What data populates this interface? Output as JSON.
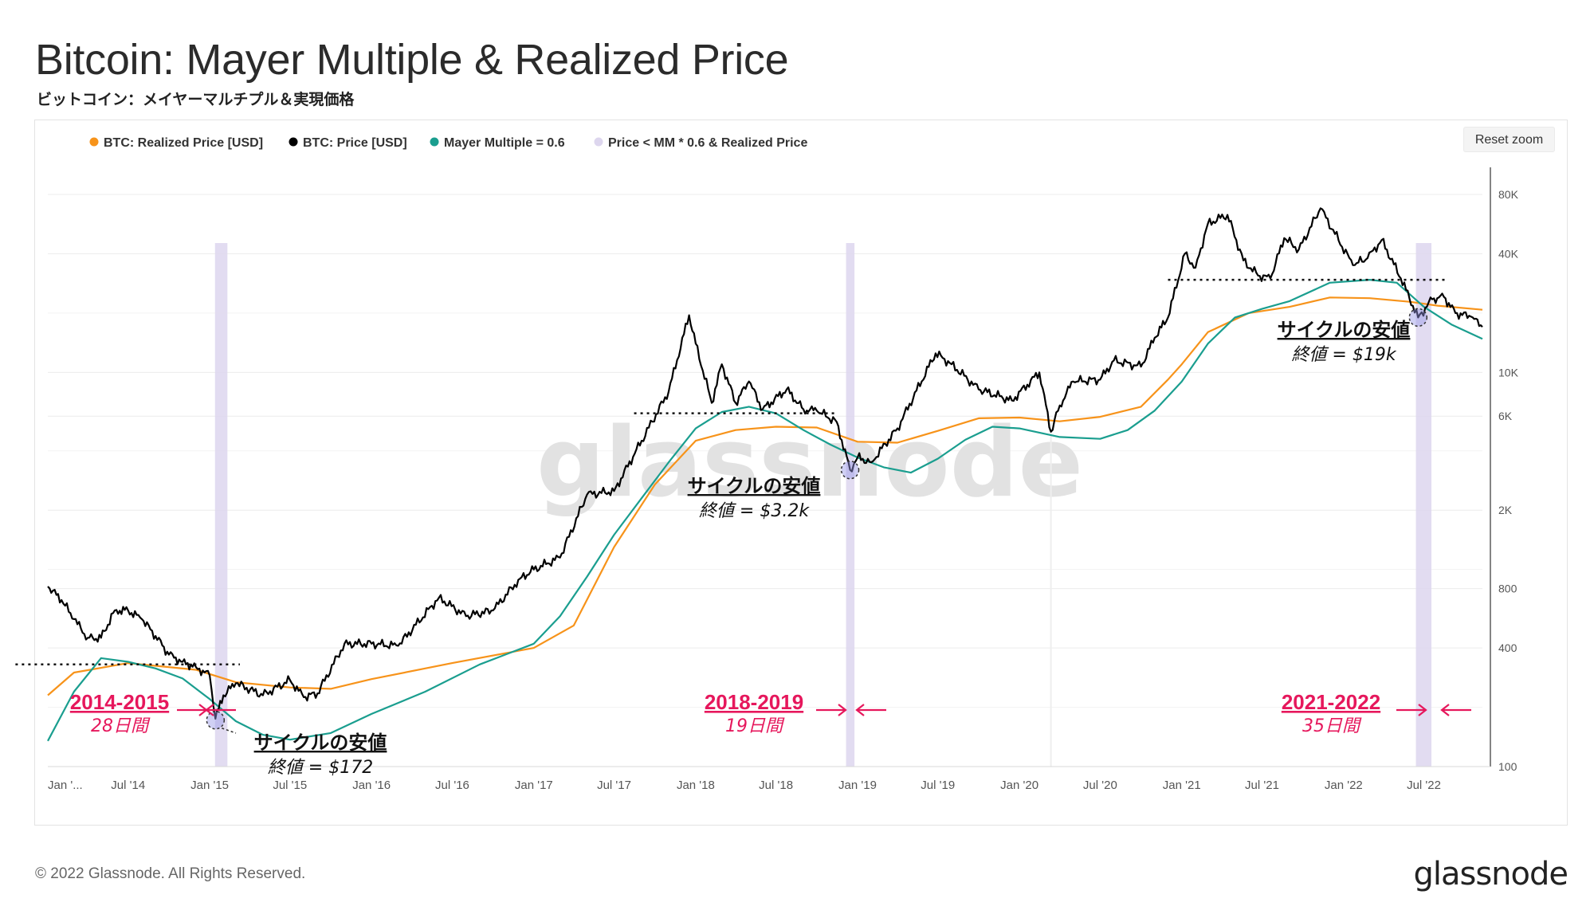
{
  "header": {
    "title": "Bitcoin: Mayer Multiple & Realized Price",
    "subtitle": "ビットコイン：メイヤーマルチプル＆実現価格"
  },
  "toolbar": {
    "reset_zoom_label": "Reset zoom"
  },
  "footer": {
    "copyright": "© 2022 Glassnode. All Rights Reserved.",
    "logo": "glassnode"
  },
  "watermark": "glassnode",
  "colors": {
    "realized": "#f7931a",
    "price": "#000000",
    "mayer": "#1a9e8f",
    "band": "#ddd6ee",
    "annotation": "#e6175c"
  },
  "chart_data": {
    "type": "line",
    "y_scale": "log",
    "ylim": [
      100,
      100000
    ],
    "y_ticks": [
      {
        "label": "100",
        "value": 100
      },
      {
        "label": "400",
        "value": 400
      },
      {
        "label": "800",
        "value": 800
      },
      {
        "label": "2K",
        "value": 2000
      },
      {
        "label": "6K",
        "value": 6000
      },
      {
        "label": "10K",
        "value": 10000
      },
      {
        "label": "40K",
        "value": 40000
      },
      {
        "label": "80K",
        "value": 80000
      }
    ],
    "x_range": [
      "2014-01-01",
      "2022-11-10"
    ],
    "x_ticks": [
      {
        "label": "Jan '...",
        "date": "2014-01-01"
      },
      {
        "label": "Jul '14",
        "date": "2014-07-01"
      },
      {
        "label": "Jan '15",
        "date": "2015-01-01"
      },
      {
        "label": "Jul '15",
        "date": "2015-07-01"
      },
      {
        "label": "Jan '16",
        "date": "2016-01-01"
      },
      {
        "label": "Jul '16",
        "date": "2016-07-01"
      },
      {
        "label": "Jan '17",
        "date": "2017-01-01"
      },
      {
        "label": "Jul '17",
        "date": "2017-07-01"
      },
      {
        "label": "Jan '18",
        "date": "2018-01-01"
      },
      {
        "label": "Jul '18",
        "date": "2018-07-01"
      },
      {
        "label": "Jan '19",
        "date": "2019-01-01"
      },
      {
        "label": "Jul '19",
        "date": "2019-07-01"
      },
      {
        "label": "Jan '20",
        "date": "2020-01-01"
      },
      {
        "label": "Jul '20",
        "date": "2020-07-01"
      },
      {
        "label": "Jan '21",
        "date": "2021-01-01"
      },
      {
        "label": "Jul '21",
        "date": "2021-07-01"
      },
      {
        "label": "Jan '22",
        "date": "2022-01-01"
      },
      {
        "label": "Jul '22",
        "date": "2022-07-01"
      }
    ],
    "legend_position": "top-left",
    "series": [
      {
        "name": "BTC: Realized Price [USD]",
        "key": "realized",
        "points": [
          [
            "2014-01-01",
            230
          ],
          [
            "2014-03-01",
            300
          ],
          [
            "2014-07-01",
            335
          ],
          [
            "2014-12-01",
            310
          ],
          [
            "2015-03-01",
            268
          ],
          [
            "2015-07-01",
            252
          ],
          [
            "2015-10-01",
            248
          ],
          [
            "2016-01-01",
            278
          ],
          [
            "2016-07-01",
            335
          ],
          [
            "2017-01-01",
            400
          ],
          [
            "2017-04-01",
            520
          ],
          [
            "2017-07-01",
            1300
          ],
          [
            "2017-10-01",
            2700
          ],
          [
            "2018-01-01",
            4500
          ],
          [
            "2018-04-01",
            5100
          ],
          [
            "2018-07-01",
            5300
          ],
          [
            "2018-10-01",
            5250
          ],
          [
            "2019-01-01",
            4450
          ],
          [
            "2019-04-01",
            4400
          ],
          [
            "2019-07-01",
            5050
          ],
          [
            "2019-10-01",
            5850
          ],
          [
            "2020-01-01",
            5900
          ],
          [
            "2020-04-01",
            5650
          ],
          [
            "2020-07-01",
            5950
          ],
          [
            "2020-10-01",
            6700
          ],
          [
            "2020-12-01",
            9200
          ],
          [
            "2021-01-01",
            11000
          ],
          [
            "2021-03-01",
            16000
          ],
          [
            "2021-06-01",
            20000
          ],
          [
            "2021-09-01",
            21500
          ],
          [
            "2021-12-01",
            24000
          ],
          [
            "2022-03-01",
            23800
          ],
          [
            "2022-06-01",
            22800
          ],
          [
            "2022-08-01",
            21800
          ],
          [
            "2022-11-10",
            20800
          ]
        ]
      },
      {
        "name": "BTC: Price [USD]",
        "key": "price",
        "points": [
          [
            "2014-01-01",
            820
          ],
          [
            "2014-02-01",
            700
          ],
          [
            "2014-03-01",
            560
          ],
          [
            "2014-04-01",
            450
          ],
          [
            "2014-05-01",
            450
          ],
          [
            "2014-06-01",
            620
          ],
          [
            "2014-07-01",
            620
          ],
          [
            "2014-08-01",
            560
          ],
          [
            "2014-09-01",
            460
          ],
          [
            "2014-10-01",
            370
          ],
          [
            "2014-11-01",
            340
          ],
          [
            "2014-12-01",
            320
          ],
          [
            "2015-01-01",
            290
          ],
          [
            "2015-01-14",
            175
          ],
          [
            "2015-02-01",
            230
          ],
          [
            "2015-03-01",
            265
          ],
          [
            "2015-05-01",
            230
          ],
          [
            "2015-07-01",
            275
          ],
          [
            "2015-08-01",
            225
          ],
          [
            "2015-09-01",
            235
          ],
          [
            "2015-11-01",
            420
          ],
          [
            "2016-01-01",
            420
          ],
          [
            "2016-03-01",
            410
          ],
          [
            "2016-06-01",
            720
          ],
          [
            "2016-08-01",
            580
          ],
          [
            "2016-10-01",
            620
          ],
          [
            "2016-12-01",
            900
          ],
          [
            "2017-01-01",
            1000
          ],
          [
            "2017-03-01",
            1150
          ],
          [
            "2017-05-01",
            2400
          ],
          [
            "2017-07-01",
            2500
          ],
          [
            "2017-09-01",
            4500
          ],
          [
            "2017-11-01",
            8000
          ],
          [
            "2017-12-17",
            19500
          ],
          [
            "2018-01-01",
            14000
          ],
          [
            "2018-02-06",
            7000
          ],
          [
            "2018-03-01",
            11000
          ],
          [
            "2018-04-01",
            7000
          ],
          [
            "2018-05-01",
            9000
          ],
          [
            "2018-06-01",
            6500
          ],
          [
            "2018-07-25",
            8200
          ],
          [
            "2018-09-01",
            6500
          ],
          [
            "2018-10-01",
            6400
          ],
          [
            "2018-11-15",
            5600
          ],
          [
            "2018-12-15",
            3200
          ],
          [
            "2019-01-01",
            3700
          ],
          [
            "2019-02-01",
            3500
          ],
          [
            "2019-04-01",
            5200
          ],
          [
            "2019-06-26",
            12500
          ],
          [
            "2019-08-01",
            11000
          ],
          [
            "2019-10-01",
            8200
          ],
          [
            "2019-12-15",
            7200
          ],
          [
            "2020-02-15",
            10000
          ],
          [
            "2020-03-12",
            5000
          ],
          [
            "2020-04-01",
            6800
          ],
          [
            "2020-05-01",
            9000
          ],
          [
            "2020-07-01",
            9200
          ],
          [
            "2020-08-01",
            11500
          ],
          [
            "2020-10-01",
            10700
          ],
          [
            "2020-11-01",
            15000
          ],
          [
            "2020-12-01",
            19000
          ],
          [
            "2021-01-08",
            40000
          ],
          [
            "2021-02-01",
            34000
          ],
          [
            "2021-03-01",
            57000
          ],
          [
            "2021-04-14",
            63000
          ],
          [
            "2021-05-20",
            37000
          ],
          [
            "2021-06-22",
            31000
          ],
          [
            "2021-07-20",
            30000
          ],
          [
            "2021-08-20",
            48000
          ],
          [
            "2021-09-22",
            42000
          ],
          [
            "2021-11-10",
            68000
          ],
          [
            "2022-01-22",
            35000
          ],
          [
            "2022-02-24",
            38000
          ],
          [
            "2022-03-28",
            47000
          ],
          [
            "2022-05-10",
            30000
          ],
          [
            "2022-06-18",
            19000
          ],
          [
            "2022-07-20",
            23500
          ],
          [
            "2022-08-15",
            24200
          ],
          [
            "2022-09-10",
            20000
          ],
          [
            "2022-10-15",
            19200
          ],
          [
            "2022-11-10",
            17000
          ]
        ]
      },
      {
        "name": "Mayer Multiple = 0.6",
        "key": "mayer",
        "points": [
          [
            "2014-01-01",
            135
          ],
          [
            "2014-03-01",
            240
          ],
          [
            "2014-05-01",
            355
          ],
          [
            "2014-07-01",
            340
          ],
          [
            "2014-09-01",
            315
          ],
          [
            "2014-11-01",
            280
          ],
          [
            "2015-01-01",
            220
          ],
          [
            "2015-03-01",
            170
          ],
          [
            "2015-05-01",
            145
          ],
          [
            "2015-07-01",
            137
          ],
          [
            "2015-10-01",
            148
          ],
          [
            "2016-01-01",
            185
          ],
          [
            "2016-05-01",
            240
          ],
          [
            "2016-09-01",
            330
          ],
          [
            "2017-01-01",
            420
          ],
          [
            "2017-03-01",
            580
          ],
          [
            "2017-05-01",
            920
          ],
          [
            "2017-07-01",
            1500
          ],
          [
            "2017-09-01",
            2300
          ],
          [
            "2017-11-01",
            3500
          ],
          [
            "2018-01-01",
            5200
          ],
          [
            "2018-03-01",
            6300
          ],
          [
            "2018-05-01",
            6700
          ],
          [
            "2018-07-01",
            6200
          ],
          [
            "2018-09-01",
            5100
          ],
          [
            "2018-11-01",
            4300
          ],
          [
            "2019-01-01",
            3700
          ],
          [
            "2019-03-01",
            3300
          ],
          [
            "2019-05-01",
            3100
          ],
          [
            "2019-07-01",
            3650
          ],
          [
            "2019-09-01",
            4550
          ],
          [
            "2019-11-01",
            5300
          ],
          [
            "2020-01-01",
            5200
          ],
          [
            "2020-04-01",
            4700
          ],
          [
            "2020-07-01",
            4600
          ],
          [
            "2020-09-01",
            5100
          ],
          [
            "2020-11-01",
            6400
          ],
          [
            "2021-01-01",
            9000
          ],
          [
            "2021-03-01",
            14000
          ],
          [
            "2021-05-01",
            19000
          ],
          [
            "2021-07-01",
            21000
          ],
          [
            "2021-09-01",
            23000
          ],
          [
            "2021-12-01",
            28500
          ],
          [
            "2022-03-01",
            29500
          ],
          [
            "2022-05-01",
            28500
          ],
          [
            "2022-07-01",
            21500
          ],
          [
            "2022-09-01",
            17500
          ],
          [
            "2022-11-10",
            14800
          ]
        ]
      },
      {
        "name": "Price < MM * 0.6 & Realized Price",
        "key": "band",
        "periods": [
          [
            "2015-01-13",
            "2015-02-10"
          ],
          [
            "2018-12-06",
            "2018-12-25"
          ],
          [
            "2022-06-13",
            "2022-07-18"
          ]
        ]
      }
    ],
    "annotations": [
      {
        "key": "c1",
        "range": "2014-2015",
        "days": "28日間",
        "cycle_low": "サイクルの安値",
        "close": "終値 = $172",
        "date": "2015-01-14",
        "value": 172,
        "ref_level": 330,
        "ref_from": "2013-10-20",
        "ref_to": "2015-03-10"
      },
      {
        "key": "c2",
        "range": "2018-2019",
        "days": "19日間",
        "cycle_low": "サイクルの安値",
        "close": "終値 = $3.2k",
        "date": "2018-12-15",
        "value": 3200,
        "ref_level": 6200,
        "ref_from": "2017-08-15",
        "ref_to": "2018-11-15"
      },
      {
        "key": "c3",
        "range": "2021-2022",
        "days": "35日間",
        "cycle_low": "サイクルの安値",
        "close": "終値 = $19k",
        "date": "2022-06-18",
        "value": 19000,
        "ref_level": 29500,
        "ref_from": "2020-12-01",
        "ref_to": "2022-08-25"
      }
    ]
  }
}
